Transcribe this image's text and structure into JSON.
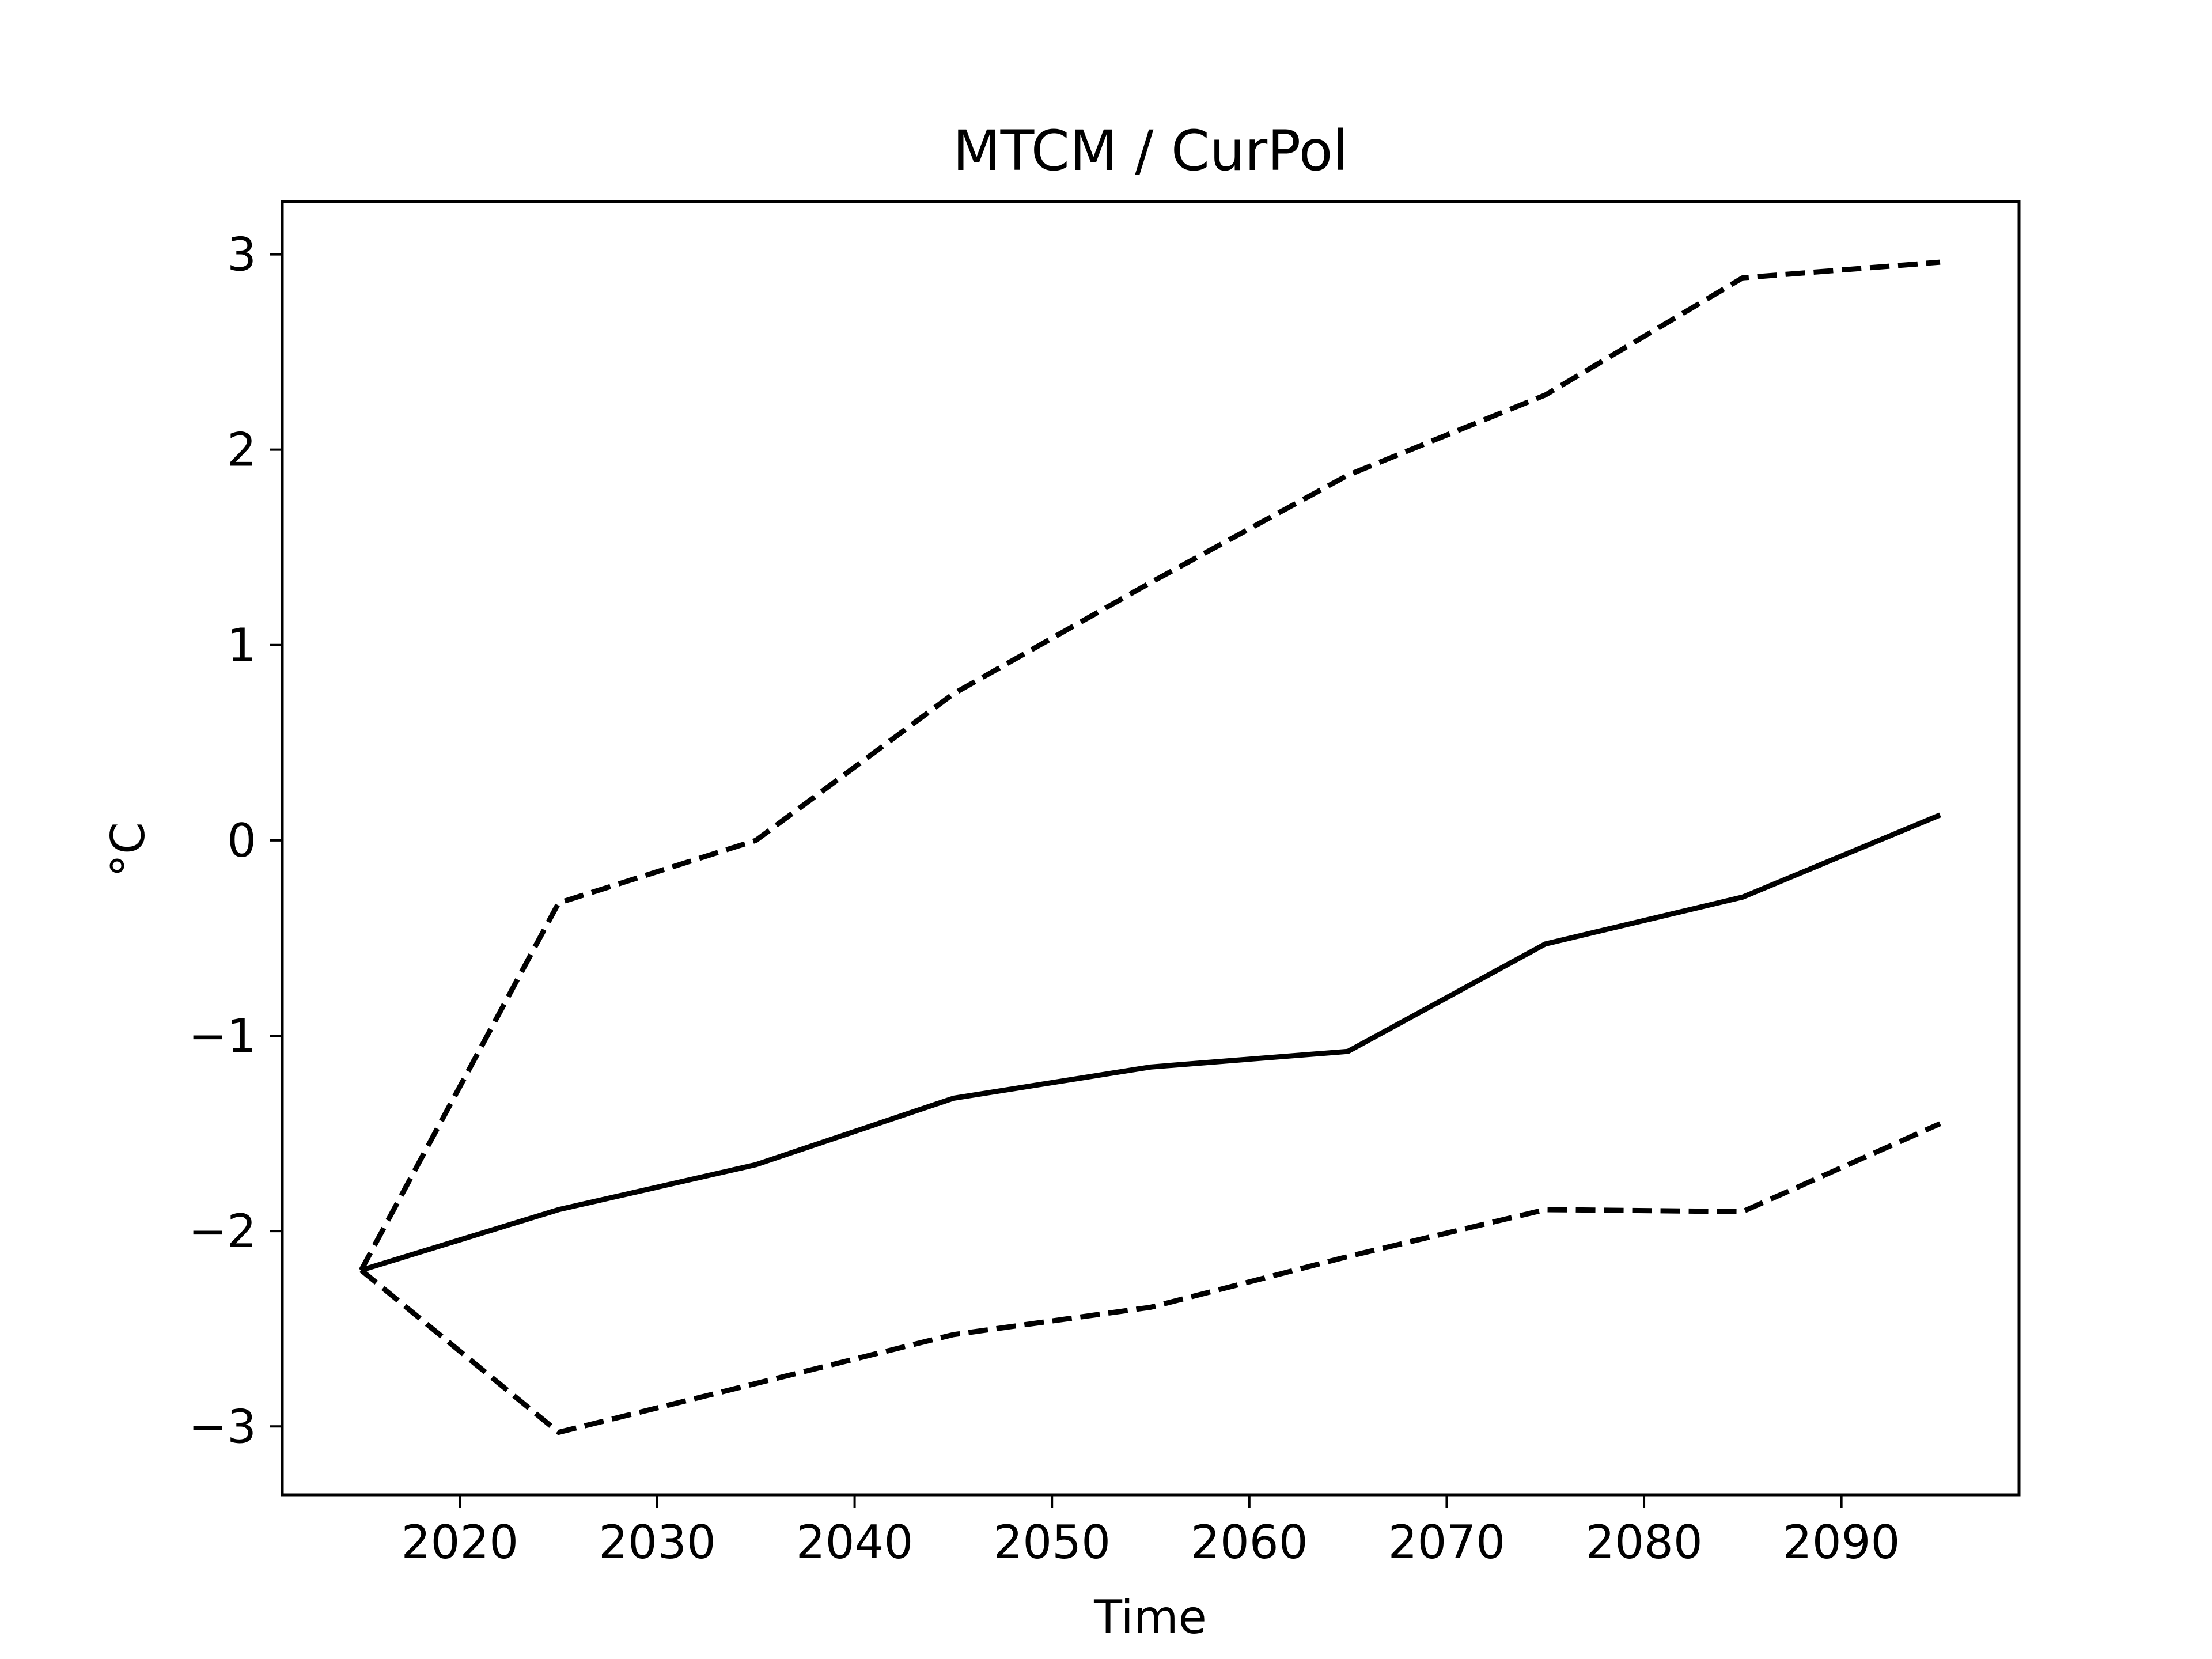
{
  "chart_data": {
    "type": "line",
    "title": "MTCM / CurPol",
    "xlabel": "Time",
    "ylabel": "°C",
    "xlim": [
      2011,
      2099
    ],
    "ylim": [
      -3.35,
      3.27
    ],
    "x_ticks": [
      2020,
      2030,
      2040,
      2050,
      2060,
      2070,
      2080,
      2090
    ],
    "y_ticks": [
      {
        "value": 3,
        "label": "3"
      },
      {
        "value": 2,
        "label": "2"
      },
      {
        "value": 1,
        "label": "1"
      },
      {
        "value": 0,
        "label": "0"
      },
      {
        "value": -1,
        "label": "−1"
      },
      {
        "value": -2,
        "label": "−2"
      },
      {
        "value": -3,
        "label": "−3"
      }
    ],
    "grid": false,
    "x": [
      2015,
      2025,
      2035,
      2045,
      2055,
      2065,
      2075,
      2085,
      2095
    ],
    "series": [
      {
        "style": "solid",
        "color": "#000000",
        "values": [
          -2.2,
          -1.89,
          -1.66,
          -1.32,
          -1.16,
          -1.08,
          -0.53,
          -0.29,
          0.13
        ]
      },
      {
        "style": "dashed",
        "color": "#000000",
        "values": [
          -2.2,
          -0.32,
          0.0,
          0.75,
          1.32,
          1.87,
          2.28,
          2.88,
          2.96
        ]
      },
      {
        "style": "dashed",
        "color": "#000000",
        "values": [
          -2.2,
          -3.03,
          -2.78,
          -2.53,
          -2.39,
          -2.13,
          -1.89,
          -1.9,
          -1.45
        ]
      }
    ]
  }
}
